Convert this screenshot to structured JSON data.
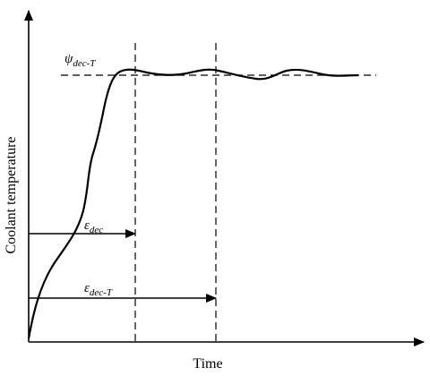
{
  "diagram": {
    "x_axis_label": "Time",
    "y_axis_label": "Coolant temperature",
    "setpoint_label": {
      "symbol": "ψ",
      "subscript": "dec-T"
    },
    "interval_short_label": {
      "symbol": "ε",
      "subscript": "dec"
    },
    "interval_long_label": {
      "symbol": "ε",
      "subscript": "dec-T"
    },
    "line_color": "#000000"
  }
}
